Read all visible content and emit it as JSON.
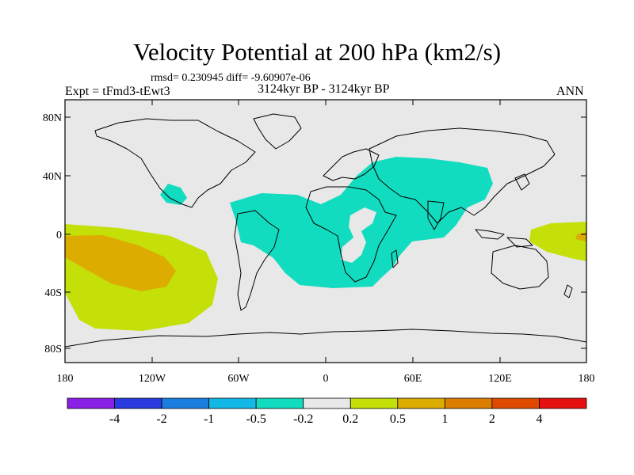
{
  "title": "Velocity Potential at 200 hPa (km2/s)",
  "stats": "rmsd= 0.230945  diff= -9.60907e-06",
  "experiment": "Expt = tFmd3-tEwt3",
  "period": "3124kyr BP - 3124kyr BP",
  "season": "ANN",
  "lat_ticks": [
    "80N",
    "40N",
    "0",
    "40S",
    "80S"
  ],
  "lon_ticks": [
    "180",
    "120W",
    "60W",
    "0",
    "60E",
    "120E",
    "180"
  ],
  "colorbar": {
    "labels": [
      "-4",
      "-2",
      "-1",
      "-0.5",
      "-0.2",
      "0.2",
      "0.5",
      "1",
      "2",
      "4"
    ],
    "colors": [
      "#8a1fe6",
      "#2a3be0",
      "#1a7ee0",
      "#12b8e6",
      "#12dcc0",
      "#e8e8e8",
      "#c4e008",
      "#dcac00",
      "#dc7e00",
      "#e04a00",
      "#e61010"
    ]
  },
  "colors": {
    "background": "#e8e8e8",
    "negative_anomaly": "#12dcc0",
    "positive_weak": "#c4e008",
    "positive_moderate": "#dcac00",
    "positive_strong": "#dc7e00"
  }
}
